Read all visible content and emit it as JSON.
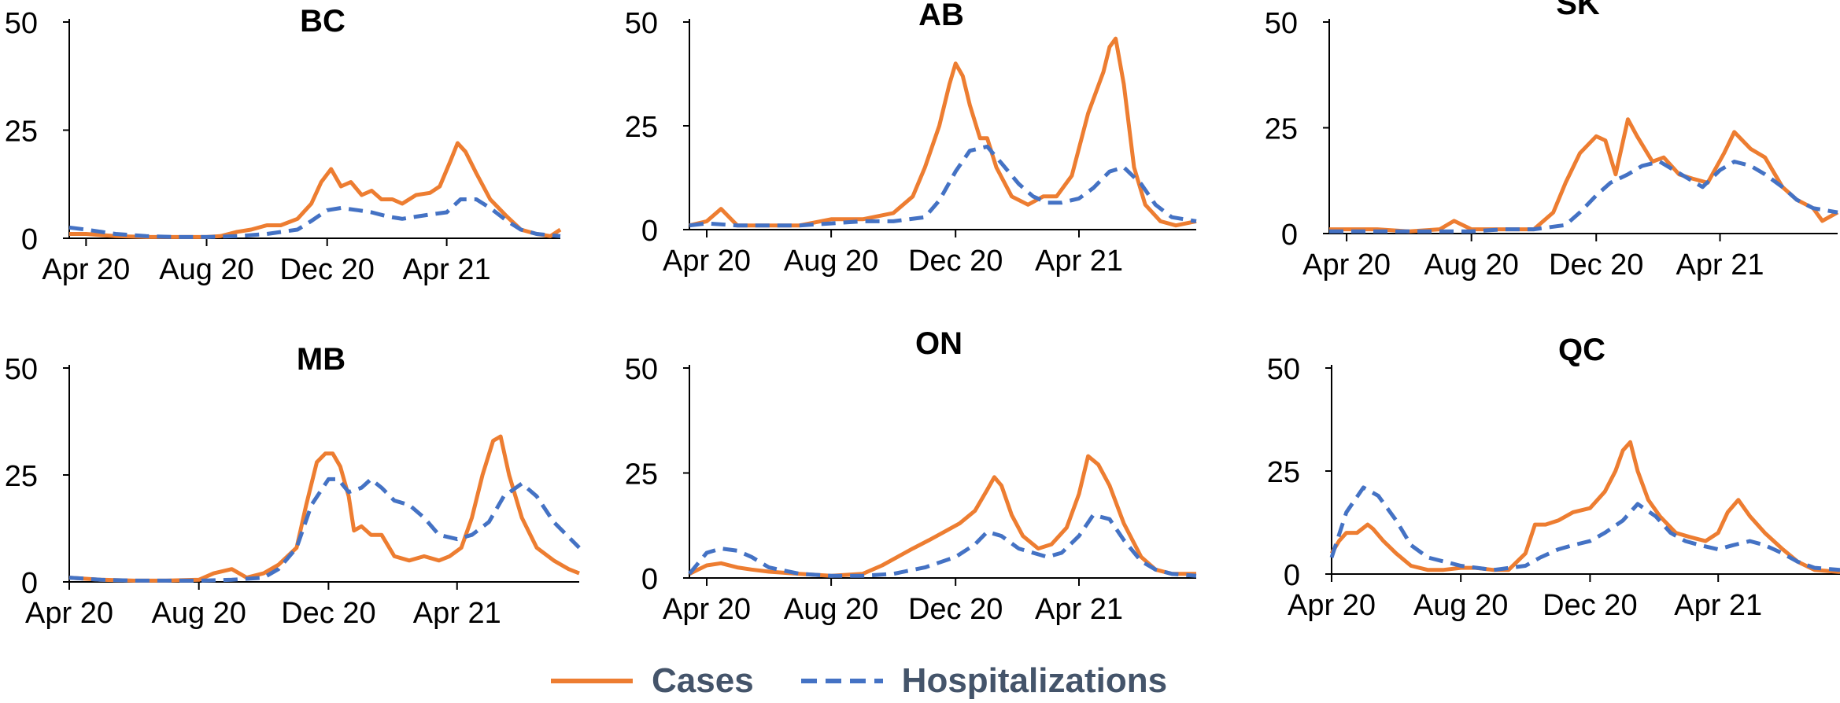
{
  "colors": {
    "cases": "#ED7D31",
    "hospitalizations": "#4472C4",
    "axis": "#000000",
    "legend_text": "#44546A"
  },
  "legend": {
    "cases_label": "Cases",
    "hospitalizations_label": "Hospitalizations",
    "placement": "bottom-center"
  },
  "chart_data": [
    {
      "type": "line",
      "title": "BC",
      "x_ticks": [
        "Apr 20",
        "Aug 20",
        "Dec 20",
        "Apr 21"
      ],
      "x_range": [
        "2020-03-15",
        "2021-07-25"
      ],
      "y_ticks": [
        0,
        25,
        50
      ],
      "ylim": [
        0,
        50
      ],
      "series": [
        {
          "name": "Cases",
          "x": [
            "2020-03-15",
            "2020-04-01",
            "2020-05-01",
            "2020-06-01",
            "2020-07-01",
            "2020-08-01",
            "2020-08-15",
            "2020-09-01",
            "2020-09-15",
            "2020-10-01",
            "2020-10-15",
            "2020-11-01",
            "2020-11-15",
            "2020-11-25",
            "2020-12-05",
            "2020-12-15",
            "2020-12-25",
            "2021-01-05",
            "2021-01-15",
            "2021-01-25",
            "2021-02-05",
            "2021-02-15",
            "2021-03-01",
            "2021-03-15",
            "2021-03-25",
            "2021-04-05",
            "2021-04-12",
            "2021-04-20",
            "2021-05-01",
            "2021-05-15",
            "2021-06-01",
            "2021-06-15",
            "2021-07-01",
            "2021-07-15",
            "2021-07-25"
          ],
          "y": [
            1,
            1,
            0.5,
            0.3,
            0.3,
            0.3,
            0.5,
            1.5,
            2,
            3,
            3,
            4.5,
            8,
            13,
            16,
            12,
            13,
            10,
            11,
            9,
            9,
            8,
            10,
            10.5,
            12,
            18,
            22,
            20,
            15,
            9,
            5,
            2,
            1,
            0.5,
            2
          ]
        },
        {
          "name": "Hospitalizations",
          "x": [
            "2020-03-15",
            "2020-04-01",
            "2020-05-01",
            "2020-06-01",
            "2020-07-01",
            "2020-08-01",
            "2020-09-01",
            "2020-10-01",
            "2020-11-01",
            "2020-11-15",
            "2020-12-01",
            "2020-12-15",
            "2021-01-01",
            "2021-01-15",
            "2021-02-01",
            "2021-02-15",
            "2021-03-01",
            "2021-03-15",
            "2021-04-01",
            "2021-04-15",
            "2021-05-01",
            "2021-05-15",
            "2021-06-01",
            "2021-06-15",
            "2021-07-01",
            "2021-07-25"
          ],
          "y": [
            2.5,
            2,
            1,
            0.5,
            0.3,
            0.3,
            0.5,
            1,
            2,
            4,
            6.5,
            7,
            6.5,
            6,
            5,
            4.5,
            5,
            5.5,
            6,
            9,
            9,
            7,
            4,
            2,
            1,
            0.5
          ]
        }
      ]
    },
    {
      "type": "line",
      "title": "AB",
      "x_ticks": [
        "Apr 20",
        "Aug 20",
        "Dec 20",
        "Apr 21"
      ],
      "x_range": [
        "2020-03-15",
        "2021-07-25"
      ],
      "y_ticks": [
        0,
        25,
        50
      ],
      "ylim": [
        0,
        50
      ],
      "series": [
        {
          "name": "Cases",
          "x": [
            "2020-03-15",
            "2020-04-01",
            "2020-04-15",
            "2020-05-01",
            "2020-06-01",
            "2020-07-01",
            "2020-08-01",
            "2020-09-01",
            "2020-10-01",
            "2020-10-20",
            "2020-11-01",
            "2020-11-15",
            "2020-11-25",
            "2020-12-01",
            "2020-12-08",
            "2020-12-15",
            "2020-12-25",
            "2021-01-01",
            "2021-01-10",
            "2021-01-25",
            "2021-02-10",
            "2021-02-25",
            "2021-03-10",
            "2021-03-25",
            "2021-04-10",
            "2021-04-25",
            "2021-05-01",
            "2021-05-07",
            "2021-05-15",
            "2021-05-25",
            "2021-06-05",
            "2021-06-20",
            "2021-07-05",
            "2021-07-25"
          ],
          "y": [
            1,
            2,
            5,
            1,
            1,
            1,
            2.5,
            2.5,
            4,
            8,
            15,
            25,
            35,
            40,
            37,
            30,
            22,
            22,
            15,
            8,
            6,
            8,
            8,
            13,
            28,
            38,
            44,
            46,
            35,
            15,
            6,
            2,
            1,
            2
          ]
        },
        {
          "name": "Hospitalizations",
          "x": [
            "2020-03-15",
            "2020-04-01",
            "2020-05-01",
            "2020-06-01",
            "2020-07-01",
            "2020-08-01",
            "2020-09-01",
            "2020-10-01",
            "2020-11-01",
            "2020-11-15",
            "2020-12-01",
            "2020-12-15",
            "2021-01-01",
            "2021-01-15",
            "2021-02-01",
            "2021-02-15",
            "2021-03-01",
            "2021-03-15",
            "2021-04-01",
            "2021-04-15",
            "2021-05-01",
            "2021-05-15",
            "2021-06-01",
            "2021-06-15",
            "2021-07-01",
            "2021-07-25"
          ],
          "y": [
            1,
            1.5,
            1,
            1,
            1,
            1.5,
            2,
            2,
            3,
            7,
            14,
            19,
            20,
            16,
            11,
            8,
            6.5,
            6.5,
            7.5,
            10,
            14,
            15,
            11,
            6,
            3,
            2
          ]
        }
      ]
    },
    {
      "type": "line",
      "title": "SK",
      "x_ticks": [
        "Apr 20",
        "Aug 20",
        "Dec 20",
        "Apr 21"
      ],
      "x_range": [
        "2020-03-15",
        "2021-07-25"
      ],
      "y_ticks": [
        0,
        25,
        50
      ],
      "ylim": [
        0,
        50
      ],
      "series": [
        {
          "name": "Cases",
          "x": [
            "2020-03-15",
            "2020-04-01",
            "2020-05-01",
            "2020-06-01",
            "2020-07-01",
            "2020-07-15",
            "2020-08-01",
            "2020-09-01",
            "2020-10-01",
            "2020-10-20",
            "2020-11-01",
            "2020-11-15",
            "2020-12-01",
            "2020-12-10",
            "2020-12-20",
            "2021-01-01",
            "2021-01-10",
            "2021-01-25",
            "2021-02-05",
            "2021-02-20",
            "2021-03-05",
            "2021-03-20",
            "2021-04-05",
            "2021-04-15",
            "2021-05-01",
            "2021-05-15",
            "2021-06-01",
            "2021-06-15",
            "2021-07-01",
            "2021-07-10",
            "2021-07-25"
          ],
          "y": [
            1,
            1,
            1,
            0.5,
            1,
            3,
            1,
            1,
            1,
            5,
            12,
            19,
            23,
            22,
            14,
            27,
            23,
            17,
            18,
            14,
            13,
            12,
            19,
            24,
            20,
            18,
            11,
            8,
            6,
            3,
            5
          ]
        },
        {
          "name": "Hospitalizations",
          "x": [
            "2020-03-15",
            "2020-04-01",
            "2020-05-01",
            "2020-06-01",
            "2020-07-01",
            "2020-08-01",
            "2020-09-01",
            "2020-10-01",
            "2020-11-01",
            "2020-11-15",
            "2020-12-01",
            "2020-12-15",
            "2021-01-01",
            "2021-01-15",
            "2021-02-01",
            "2021-02-15",
            "2021-03-01",
            "2021-03-15",
            "2021-04-01",
            "2021-04-15",
            "2021-05-01",
            "2021-05-15",
            "2021-06-01",
            "2021-06-15",
            "2021-07-01",
            "2021-07-25"
          ],
          "y": [
            0.5,
            0.5,
            0.5,
            0.5,
            0.5,
            0.5,
            1,
            1,
            2,
            5,
            9,
            12,
            14,
            16,
            17,
            15,
            13,
            11,
            15,
            17,
            16,
            14,
            11,
            8,
            6,
            5
          ]
        }
      ]
    },
    {
      "type": "line",
      "title": "MB",
      "x_ticks": [
        "Apr 20",
        "Aug 20",
        "Dec 20",
        "Apr 21"
      ],
      "x_range": [
        "2020-04-01",
        "2021-07-25"
      ],
      "y_ticks": [
        0,
        25,
        50
      ],
      "ylim": [
        0,
        50
      ],
      "series": [
        {
          "name": "Cases",
          "x": [
            "2020-04-01",
            "2020-05-01",
            "2020-06-01",
            "2020-07-01",
            "2020-08-01",
            "2020-08-15",
            "2020-09-01",
            "2020-09-15",
            "2020-10-01",
            "2020-10-15",
            "2020-11-01",
            "2020-11-10",
            "2020-11-20",
            "2020-11-28",
            "2020-12-05",
            "2020-12-12",
            "2020-12-20",
            "2020-12-25",
            "2021-01-01",
            "2021-01-10",
            "2021-01-20",
            "2021-02-01",
            "2021-02-15",
            "2021-03-01",
            "2021-03-15",
            "2021-03-25",
            "2021-04-05",
            "2021-04-15",
            "2021-04-25",
            "2021-05-05",
            "2021-05-12",
            "2021-05-20",
            "2021-06-01",
            "2021-06-15",
            "2021-07-01",
            "2021-07-15",
            "2021-07-25"
          ],
          "y": [
            1,
            0.5,
            0.3,
            0.3,
            0.5,
            2,
            3,
            1,
            2,
            4,
            8,
            18,
            28,
            30,
            30,
            27,
            20,
            12,
            13,
            11,
            11,
            6,
            5,
            6,
            5,
            6,
            8,
            15,
            25,
            33,
            34,
            25,
            15,
            8,
            5,
            3,
            2
          ]
        },
        {
          "name": "Hospitalizations",
          "x": [
            "2020-04-01",
            "2020-05-01",
            "2020-06-01",
            "2020-07-01",
            "2020-08-01",
            "2020-09-01",
            "2020-10-01",
            "2020-10-15",
            "2020-11-01",
            "2020-11-15",
            "2020-12-01",
            "2020-12-10",
            "2020-12-20",
            "2021-01-01",
            "2021-01-10",
            "2021-01-20",
            "2021-02-01",
            "2021-02-15",
            "2021-03-01",
            "2021-03-15",
            "2021-04-01",
            "2021-04-15",
            "2021-05-01",
            "2021-05-15",
            "2021-06-01",
            "2021-06-15",
            "2021-07-01",
            "2021-07-25"
          ],
          "y": [
            1,
            0.5,
            0.3,
            0.3,
            0.3,
            0.5,
            1,
            3,
            8,
            18,
            24,
            24,
            21,
            22,
            24,
            22,
            19,
            18,
            15,
            11,
            10,
            11,
            14,
            20,
            23,
            20,
            14,
            8
          ]
        }
      ]
    },
    {
      "type": "line",
      "title": "ON",
      "x_ticks": [
        "Apr 20",
        "Aug 20",
        "Dec 20",
        "Apr 21"
      ],
      "x_range": [
        "2020-03-15",
        "2021-07-25"
      ],
      "y_ticks": [
        0,
        25,
        50
      ],
      "ylim": [
        0,
        50
      ],
      "series": [
        {
          "name": "Cases",
          "x": [
            "2020-03-15",
            "2020-04-01",
            "2020-04-15",
            "2020-05-01",
            "2020-05-15",
            "2020-06-01",
            "2020-07-01",
            "2020-08-01",
            "2020-09-01",
            "2020-09-20",
            "2020-10-05",
            "2020-10-20",
            "2020-11-05",
            "2020-11-20",
            "2020-12-05",
            "2020-12-20",
            "2021-01-01",
            "2021-01-08",
            "2021-01-15",
            "2021-01-25",
            "2021-02-05",
            "2021-02-20",
            "2021-03-05",
            "2021-03-20",
            "2021-04-01",
            "2021-04-10",
            "2021-04-20",
            "2021-05-01",
            "2021-05-15",
            "2021-06-01",
            "2021-06-15",
            "2021-07-01",
            "2021-07-25"
          ],
          "y": [
            1,
            3,
            3.5,
            2.5,
            2,
            1.5,
            1,
            0.5,
            1,
            3,
            5,
            7,
            9,
            11,
            13,
            16,
            21,
            24,
            22,
            15,
            10,
            7,
            8,
            12,
            20,
            29,
            27,
            22,
            13,
            5,
            2,
            1,
            1
          ]
        },
        {
          "name": "Hospitalizations",
          "x": [
            "2020-03-15",
            "2020-04-01",
            "2020-04-15",
            "2020-05-01",
            "2020-05-15",
            "2020-06-01",
            "2020-07-01",
            "2020-08-01",
            "2020-09-01",
            "2020-10-01",
            "2020-11-01",
            "2020-12-01",
            "2020-12-20",
            "2021-01-01",
            "2021-01-15",
            "2021-02-01",
            "2021-02-15",
            "2021-03-01",
            "2021-03-15",
            "2021-04-01",
            "2021-04-15",
            "2021-05-01",
            "2021-05-15",
            "2021-06-01",
            "2021-06-15",
            "2021-07-01",
            "2021-07-25"
          ],
          "y": [
            1,
            6,
            7,
            6.5,
            5,
            2.5,
            1,
            0.5,
            0.5,
            1,
            2.5,
            5,
            8,
            11,
            10,
            7,
            6,
            5,
            6,
            10,
            15,
            14,
            9,
            4,
            2,
            1,
            0.5
          ]
        }
      ]
    },
    {
      "type": "line",
      "title": "QC",
      "x_ticks": [
        "Apr 20",
        "Aug 20",
        "Dec 20",
        "Apr 21"
      ],
      "x_range": [
        "2020-04-01",
        "2021-07-25"
      ],
      "y_ticks": [
        0,
        25,
        50
      ],
      "ylim": [
        0,
        50
      ],
      "series": [
        {
          "name": "Cases",
          "x": [
            "2020-04-01",
            "2020-04-08",
            "2020-04-15",
            "2020-04-25",
            "2020-05-05",
            "2020-05-10",
            "2020-05-20",
            "2020-06-01",
            "2020-06-15",
            "2020-07-01",
            "2020-07-15",
            "2020-08-01",
            "2020-08-15",
            "2020-09-01",
            "2020-09-15",
            "2020-10-01",
            "2020-10-10",
            "2020-10-20",
            "2020-11-01",
            "2020-11-15",
            "2020-12-01",
            "2020-12-15",
            "2020-12-25",
            "2021-01-01",
            "2021-01-08",
            "2021-01-15",
            "2021-01-25",
            "2021-02-05",
            "2021-02-20",
            "2021-03-05",
            "2021-03-20",
            "2021-04-01",
            "2021-04-10",
            "2021-04-20",
            "2021-05-01",
            "2021-05-15",
            "2021-06-01",
            "2021-06-15",
            "2021-07-01",
            "2021-07-25"
          ],
          "y": [
            5,
            8,
            10,
            10,
            12,
            11,
            8,
            5,
            2,
            1,
            1,
            1.5,
            1.5,
            1,
            1,
            5,
            12,
            12,
            13,
            15,
            16,
            20,
            25,
            30,
            32,
            25,
            18,
            14,
            10,
            9,
            8,
            10,
            15,
            18,
            14,
            10,
            6,
            3,
            1,
            0.5
          ]
        },
        {
          "name": "Hospitalizations",
          "x": [
            "2020-04-01",
            "2020-04-15",
            "2020-05-01",
            "2020-05-15",
            "2020-06-01",
            "2020-06-15",
            "2020-07-01",
            "2020-08-01",
            "2020-09-01",
            "2020-10-01",
            "2020-10-15",
            "2020-11-01",
            "2020-11-15",
            "2020-12-01",
            "2020-12-15",
            "2021-01-01",
            "2021-01-15",
            "2021-02-01",
            "2021-02-15",
            "2021-03-01",
            "2021-03-15",
            "2021-04-01",
            "2021-04-15",
            "2021-05-01",
            "2021-05-15",
            "2021-06-01",
            "2021-06-15",
            "2021-07-01",
            "2021-07-25"
          ],
          "y": [
            4,
            15,
            21,
            19,
            13,
            7,
            4,
            2,
            1,
            2,
            4,
            6,
            7,
            8,
            10,
            13,
            17,
            14,
            10,
            8,
            7,
            6,
            7,
            8,
            7,
            5,
            3,
            1.5,
            1
          ]
        }
      ]
    }
  ]
}
